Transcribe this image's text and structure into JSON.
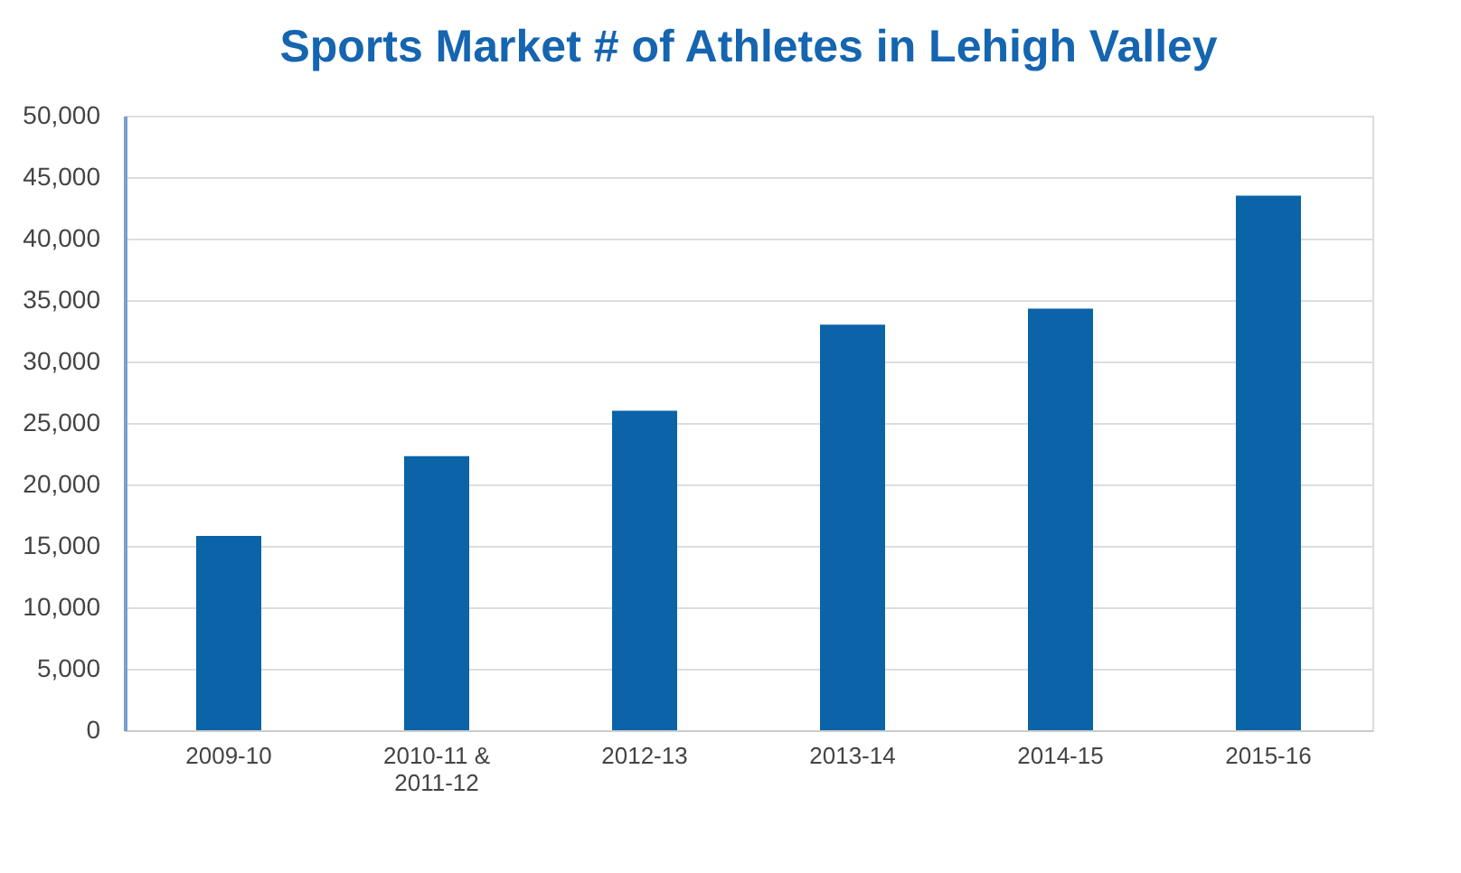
{
  "chart_data": {
    "type": "bar",
    "title": "Sports Market # of Athletes in Lehigh Valley",
    "categories": [
      "2009-10",
      "2010-11 &\n2011-12",
      "2012-13",
      "2013-14",
      "2014-15",
      "2015-16"
    ],
    "values": [
      15800,
      22300,
      26000,
      33000,
      34300,
      43500
    ],
    "color": "#0b63a8",
    "ylim": [
      0,
      50000
    ],
    "yticks": [
      0,
      {
        "value": 5000,
        "label": "5,000"
      },
      {
        "value": 10000,
        "label": "10,000"
      },
      {
        "value": 15000,
        "label": "15,000"
      },
      {
        "value": 20000,
        "label": "20,000"
      },
      {
        "value": 25000,
        "label": "25,000"
      },
      {
        "value": 30000,
        "label": "30,000"
      },
      {
        "value": 35000,
        "label": "35,000"
      },
      {
        "value": 40000,
        "label": "40,000"
      },
      {
        "value": 45000,
        "label": "45,000"
      },
      {
        "value": 50000,
        "label": "50,000"
      }
    ],
    "grid": "y"
  }
}
